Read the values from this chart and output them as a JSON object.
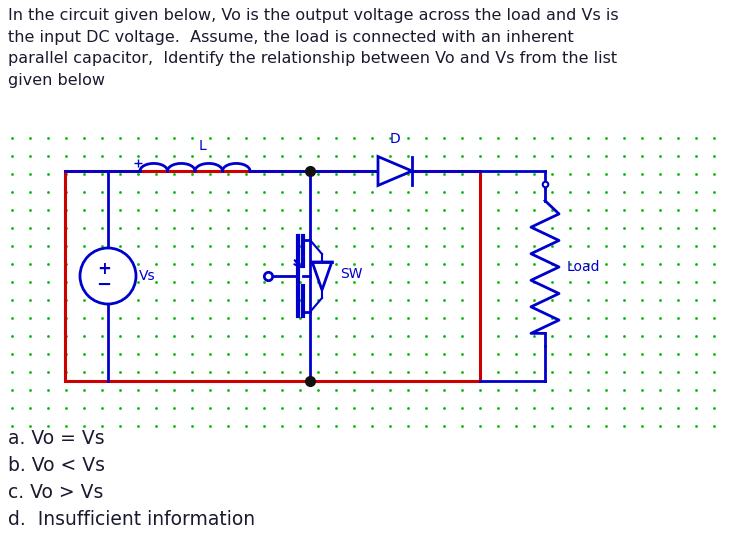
{
  "bg_color": "#ffffff",
  "dot_color": "#00bb00",
  "circuit_color": "#0000cc",
  "rect_color": "#cc0000",
  "text_color": "#1a1a2e",
  "title_text": "In the circuit given below, Vo is the output voltage across the load and Vs is\nthe input DC voltage.  Assume, the load is connected with an inherent\nparallel capacitor,  Identify the relationship between Vo and Vs from the list\ngiven below",
  "options": [
    "a. Vo = Vs",
    "b. Vo < Vs",
    "c. Vo > Vs",
    "d.  Insufficient information"
  ],
  "fig_width": 7.34,
  "fig_height": 5.36
}
